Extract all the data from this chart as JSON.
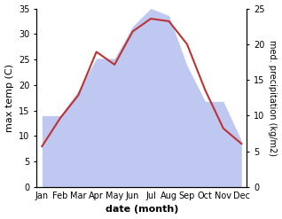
{
  "months": [
    "Jan",
    "Feb",
    "Mar",
    "Apr",
    "May",
    "Jun",
    "Jul",
    "Aug",
    "Sep",
    "Oct",
    "Nov",
    "Dec"
  ],
  "temp": [
    8,
    13.5,
    18,
    26.5,
    24,
    30.5,
    33,
    32.5,
    28,
    19,
    11.5,
    8.5
  ],
  "precip": [
    10,
    10,
    13.5,
    18,
    18,
    22.5,
    25,
    24,
    17,
    12,
    12,
    6.5
  ],
  "temp_color": "#bb3333",
  "precip_fill_color": "#bfc8f0",
  "temp_ylim": [
    0,
    35
  ],
  "precip_ylim": [
    0,
    25
  ],
  "temp_yticks": [
    0,
    5,
    10,
    15,
    20,
    25,
    30,
    35
  ],
  "precip_yticks": [
    0,
    5,
    10,
    15,
    20,
    25
  ],
  "xlabel": "date (month)",
  "ylabel_left": "max temp (C)",
  "ylabel_right": "med. precipitation (kg/m2)",
  "bg_color": "#ffffff",
  "xlabel_fontsize": 8,
  "ylabel_fontsize": 8,
  "tick_labelsize": 7
}
